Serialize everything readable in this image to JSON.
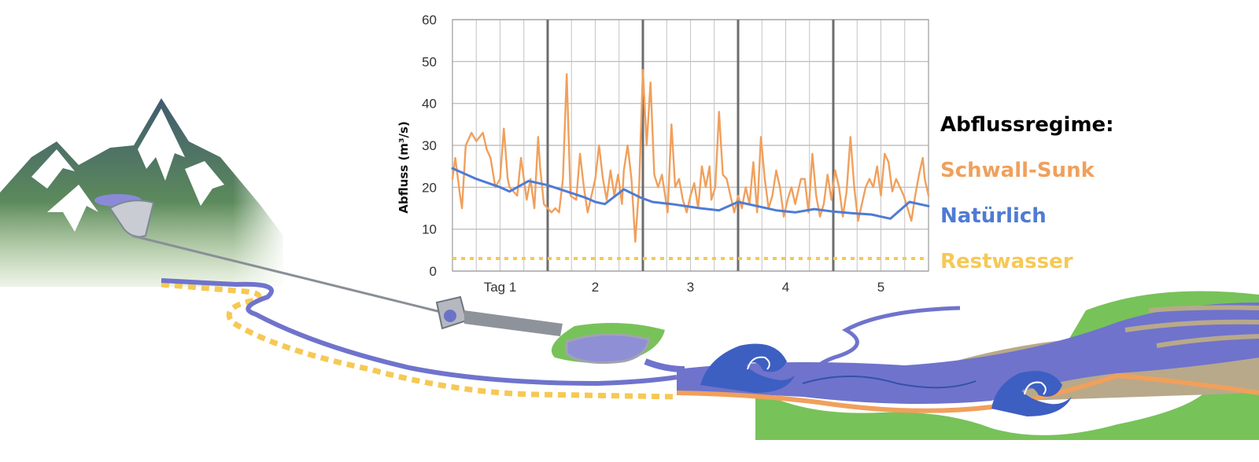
{
  "chart_data": {
    "type": "line",
    "ylabel": "Abfluss (m³/s)",
    "ylim": [
      0,
      60
    ],
    "yticks": [
      0,
      10,
      20,
      30,
      40,
      50,
      60
    ],
    "xlim": [
      0,
      5
    ],
    "xticks": [
      {
        "x": 0.5,
        "label": "Tag 1"
      },
      {
        "x": 1.5,
        "label": "2"
      },
      {
        "x": 2.5,
        "label": "3"
      },
      {
        "x": 3.5,
        "label": "4"
      },
      {
        "x": 4.5,
        "label": "5"
      }
    ],
    "grid": true,
    "day_boundaries": [
      1,
      2,
      3,
      4
    ],
    "series": [
      {
        "name": "Schwall-Sunk",
        "color": "#f0a05c",
        "style": "solid",
        "x": [
          0,
          0.03,
          0.08,
          0.1,
          0.14,
          0.2,
          0.25,
          0.32,
          0.36,
          0.4,
          0.45,
          0.5,
          0.54,
          0.58,
          0.6,
          0.68,
          0.72,
          0.78,
          0.82,
          0.86,
          0.9,
          0.92,
          0.96,
          1.0,
          1.04,
          1.08,
          1.12,
          1.16,
          1.2,
          1.24,
          1.3,
          1.34,
          1.38,
          1.42,
          1.46,
          1.5,
          1.54,
          1.58,
          1.62,
          1.66,
          1.7,
          1.74,
          1.78,
          1.8,
          1.84,
          1.88,
          1.92,
          1.96,
          2.0,
          2.04,
          2.08,
          2.12,
          2.16,
          2.2,
          2.26,
          2.3,
          2.34,
          2.38,
          2.42,
          2.46,
          2.5,
          2.54,
          2.58,
          2.62,
          2.66,
          2.7,
          2.72,
          2.76,
          2.8,
          2.84,
          2.88,
          2.92,
          2.96,
          3.0,
          3.04,
          3.08,
          3.12,
          3.16,
          3.2,
          3.24,
          3.28,
          3.32,
          3.36,
          3.4,
          3.44,
          3.48,
          3.52,
          3.56,
          3.6,
          3.66,
          3.7,
          3.74,
          3.78,
          3.82,
          3.86,
          3.9,
          3.94,
          3.98,
          4.02,
          4.06,
          4.1,
          4.14,
          4.18,
          4.22,
          4.26,
          4.3,
          4.34,
          4.38,
          4.42,
          4.46,
          4.5,
          4.54,
          4.58,
          4.62,
          4.66,
          4.7,
          4.74,
          4.78,
          4.82,
          4.86,
          4.9,
          4.94,
          4.96,
          5.0
        ],
        "values": [
          22,
          27,
          18,
          15,
          30,
          33,
          31,
          33,
          29,
          27,
          20,
          22,
          34,
          22,
          20,
          18,
          27,
          17,
          22,
          15,
          32,
          25,
          16,
          15,
          14,
          15,
          14,
          22,
          47,
          18,
          17,
          28,
          20,
          14,
          18,
          22,
          30,
          22,
          17,
          24,
          18,
          23,
          16,
          24,
          30,
          22,
          7,
          20,
          48,
          30,
          45,
          23,
          20,
          23,
          14,
          35,
          20,
          22,
          17,
          14,
          18,
          21,
          15,
          25,
          20,
          25,
          17,
          20,
          38,
          23,
          22,
          18,
          14,
          18,
          15,
          20,
          16,
          26,
          14,
          32,
          22,
          15,
          18,
          24,
          20,
          13,
          17,
          20,
          16,
          22,
          22,
          14,
          28,
          18,
          13,
          16,
          23,
          17,
          24,
          20,
          13,
          19,
          32,
          20,
          12,
          16,
          20,
          22,
          20,
          25,
          18,
          28,
          26,
          19,
          22,
          20,
          18,
          15,
          12,
          18,
          23,
          27,
          22,
          18
        ],
        "x_note": ""
      },
      {
        "name": "Natürlich",
        "color": "#4f7bd4",
        "style": "solid",
        "x": [
          0,
          0.25,
          0.5,
          0.6,
          0.8,
          1.0,
          1.2,
          1.4,
          1.5,
          1.6,
          1.8,
          1.98,
          2.1,
          2.3,
          2.6,
          2.8,
          3.0,
          3.2,
          3.4,
          3.6,
          3.8,
          4.0,
          4.2,
          4.4,
          4.5,
          4.6,
          4.8,
          5.0
        ],
        "values": [
          24.5,
          22,
          20,
          19,
          21.5,
          20.5,
          19,
          17.5,
          16.5,
          16,
          19.5,
          17.5,
          16.5,
          16,
          15,
          14.5,
          16.5,
          15.5,
          14.5,
          14,
          14.8,
          14.2,
          13.8,
          13.5,
          13,
          12.5,
          16.5,
          15.5
        ]
      },
      {
        "name": "Restwasser",
        "color": "#f6c955",
        "style": "dotted",
        "x": [
          0,
          5
        ],
        "values": [
          3,
          3
        ]
      }
    ]
  },
  "legend": {
    "title": "Abflussregime:",
    "title_color": "#000000",
    "items": [
      {
        "label": "Schwall-Sunk",
        "color": "#f0a05c"
      },
      {
        "label": "Natürlich",
        "color": "#4f7bd4"
      },
      {
        "label": "Restwasser",
        "color": "#f6c955"
      }
    ]
  },
  "illustration": {
    "colors": {
      "mountain": "#4d6a7a",
      "mountain_green": "#6d9b4f",
      "snow": "#ffffff",
      "river": "#6f73cc",
      "residual_flow": "#f6c955",
      "bank_green": "#77c25a",
      "bank_orange": "#f0a05c",
      "sediment": "#b8a98a",
      "wave": "#3d5fc2"
    }
  }
}
